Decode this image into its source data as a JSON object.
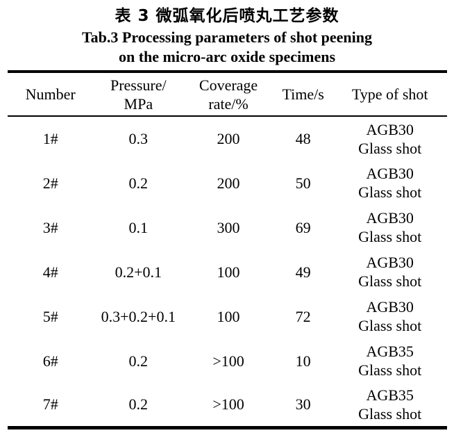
{
  "colors": {
    "background": "#ffffff",
    "text": "#000000",
    "rule": "#000000"
  },
  "caption": {
    "chinese": "表 3 微弧氧化后喷丸工艺参数",
    "english_line1": "Tab.3 Processing parameters of shot peening",
    "english_line2": "on the micro-arc oxide specimens"
  },
  "table": {
    "header": {
      "number": "Number",
      "pressure_line1": "Pressure/",
      "pressure_line2": "MPa",
      "coverage_line1": "Coverage",
      "coverage_line2": "rate/%",
      "time": "Time/s",
      "type": "Type of shot"
    },
    "rows": [
      {
        "number": "1#",
        "pressure": "0.3",
        "coverage": "200",
        "time": "48",
        "shot_line1": "AGB30",
        "shot_line2": "Glass shot"
      },
      {
        "number": "2#",
        "pressure": "0.2",
        "coverage": "200",
        "time": "50",
        "shot_line1": "AGB30",
        "shot_line2": "Glass shot"
      },
      {
        "number": "3#",
        "pressure": "0.1",
        "coverage": "300",
        "time": "69",
        "shot_line1": "AGB30",
        "shot_line2": "Glass shot"
      },
      {
        "number": "4#",
        "pressure": "0.2+0.1",
        "coverage": "100",
        "time": "49",
        "shot_line1": "AGB30",
        "shot_line2": "Glass shot"
      },
      {
        "number": "5#",
        "pressure": "0.3+0.2+0.1",
        "coverage": "100",
        "time": "72",
        "shot_line1": "AGB30",
        "shot_line2": "Glass shot"
      },
      {
        "number": "6#",
        "pressure": "0.2",
        "coverage": ">100",
        "time": "10",
        "shot_line1": "AGB35",
        "shot_line2": "Glass shot"
      },
      {
        "number": "7#",
        "pressure": "0.2",
        "coverage": ">100",
        "time": "30",
        "shot_line1": "AGB35",
        "shot_line2": "Glass shot"
      }
    ]
  }
}
